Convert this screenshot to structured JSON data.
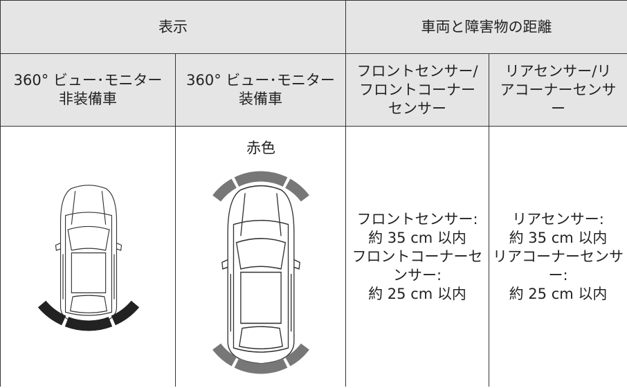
{
  "table": {
    "header": {
      "group_display": "表示",
      "group_distance": "車両と障害物の距離"
    },
    "columns": [
      "360° ビュー･モニター非装備車",
      "360° ビュー･モニター装備車",
      "フロントセンサー/フロントコーナーセンサー",
      "リアセンサー/リアコーナーセンサー"
    ],
    "body": {
      "color_label": "赤色",
      "front_distance": [
        "フロントセンサー:",
        "約 35 cm 以内",
        "フロントコーナーセンサー:",
        "約 25 cm 以内"
      ],
      "rear_distance": [
        "リアセンサー:",
        "約 35 cm 以内",
        "リアコーナーセンサー:",
        "約 25 cm 以内"
      ]
    }
  }
}
